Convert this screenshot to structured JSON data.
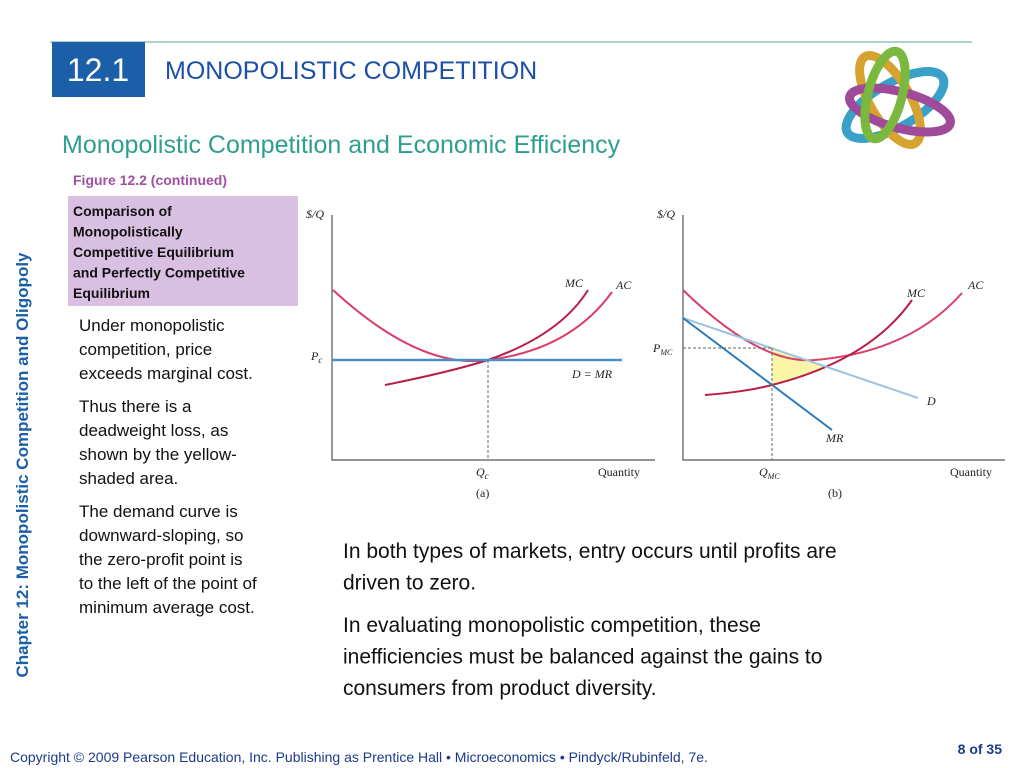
{
  "header": {
    "section_number": "12.1",
    "title": "MONOPOLISTIC COMPETITION"
  },
  "subtitle": "Monopolistic Competition and Economic Efficiency",
  "figure": {
    "label": "Figure 12.2 (continued)",
    "caption": [
      "Comparison of",
      "Monopolistically",
      "Competitive Equilibrium",
      "and Perfectly Competitive",
      "Equilibrium"
    ],
    "notes": [
      [
        "Under monopolistic",
        "competition, price",
        "exceeds marginal cost."
      ],
      [
        "Thus there is a",
        "deadweight loss, as",
        "shown by the yellow-",
        "shaded area."
      ],
      [
        "The demand curve is",
        "downward-sloping, so",
        "the zero-profit point is",
        "to the left of the point of",
        "minimum average cost."
      ]
    ],
    "panel_a": {
      "y_axis": "$/Q",
      "mc": "MC",
      "ac": "AC",
      "price": {
        "main": "P",
        "sub": "c"
      },
      "demand": "D = MR",
      "quantity": {
        "main": "Q",
        "sub": "c"
      },
      "x_axis": "Quantity",
      "label": "(a)"
    },
    "panel_b": {
      "y_axis": "$/Q",
      "mc": "MC",
      "ac": "AC",
      "price": {
        "main": "P",
        "sub": "MC"
      },
      "demand": "D",
      "mr": "MR",
      "quantity": {
        "main": "Q",
        "sub": "MC"
      },
      "x_axis": "Quantity",
      "label": "(b)"
    }
  },
  "body": [
    [
      "In both types of markets, entry occurs until profits are",
      "driven to zero."
    ],
    [
      "In evaluating monopolistic competition, these",
      "inefficiencies must be balanced against the gains to",
      "consumers from product diversity."
    ]
  ],
  "side_label": "Chapter 12:  Monopolistic Competition and Oligopoly",
  "footer": {
    "copyright": "Copyright © 2009 Pearson Education, Inc. Publishing as Prentice Hall  •  Microeconomics  •  Pindyck/Rubinfeld, 7e.",
    "page": "8 of 35"
  }
}
